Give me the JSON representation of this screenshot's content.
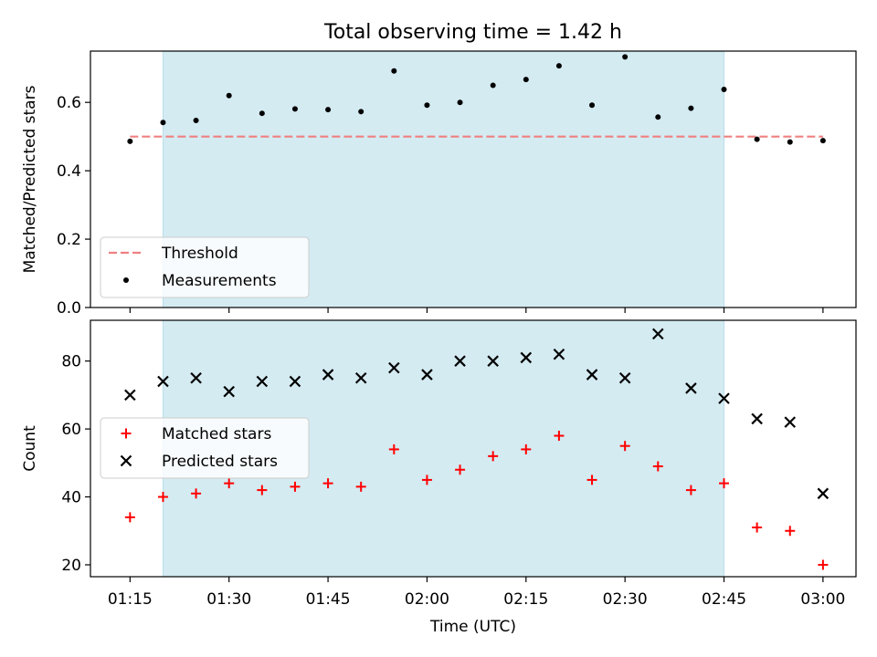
{
  "title": "Total observing time = 1.42 h",
  "colors": {
    "threshold": "#f08080",
    "measurements": "#000000",
    "matched": "#ff0000",
    "predicted": "#000000",
    "shade": "#add8e6"
  },
  "chart_data": [
    {
      "type": "scatter",
      "ylabel": "Matched/Predicted stars",
      "ylim": [
        0,
        0.75
      ],
      "yticks": [
        0.0,
        0.2,
        0.4,
        0.6
      ],
      "ytick_labels": [
        "0.0",
        "0.2",
        "0.4",
        "0.6"
      ],
      "xlim": [
        "01:09",
        "03:05"
      ],
      "shaded_span": [
        "01:20",
        "02:45"
      ],
      "legend": {
        "placement": "lower-left",
        "entries": [
          "Threshold",
          "Measurements"
        ]
      },
      "threshold": {
        "name": "Threshold",
        "value": 0.5,
        "x_range": [
          "01:15",
          "03:00"
        ]
      },
      "series": [
        {
          "name": "Measurements",
          "marker": "dot",
          "x": [
            "01:15",
            "01:20",
            "01:25",
            "01:30",
            "01:35",
            "01:40",
            "01:45",
            "01:50",
            "01:55",
            "02:00",
            "02:05",
            "02:10",
            "02:15",
            "02:20",
            "02:25",
            "02:30",
            "02:35",
            "02:40",
            "02:45",
            "02:50",
            "02:55",
            "03:00"
          ],
          "y": [
            0.486,
            0.541,
            0.547,
            0.62,
            0.568,
            0.581,
            0.579,
            0.573,
            0.692,
            0.592,
            0.6,
            0.65,
            0.667,
            0.707,
            0.592,
            0.733,
            0.557,
            0.583,
            0.638,
            0.492,
            0.484,
            0.488
          ]
        }
      ]
    },
    {
      "type": "scatter",
      "ylabel": "Count",
      "xlabel": "Time (UTC)",
      "ylim": [
        16.5,
        92
      ],
      "yticks": [
        20,
        40,
        60,
        80
      ],
      "ytick_labels": [
        "20",
        "40",
        "60",
        "80"
      ],
      "xlim": [
        "01:09",
        "03:05"
      ],
      "xticks": [
        "01:15",
        "01:30",
        "01:45",
        "02:00",
        "02:15",
        "02:30",
        "02:45",
        "03:00"
      ],
      "shaded_span": [
        "01:20",
        "02:45"
      ],
      "legend": {
        "placement": "center-left",
        "entries": [
          "Matched stars",
          "Predicted stars"
        ]
      },
      "series": [
        {
          "name": "Matched stars",
          "marker": "plus",
          "x": [
            "01:15",
            "01:20",
            "01:25",
            "01:30",
            "01:35",
            "01:40",
            "01:45",
            "01:50",
            "01:55",
            "02:00",
            "02:05",
            "02:10",
            "02:15",
            "02:20",
            "02:25",
            "02:30",
            "02:35",
            "02:40",
            "02:45",
            "02:50",
            "02:55",
            "03:00"
          ],
          "y": [
            34,
            40,
            41,
            44,
            42,
            43,
            44,
            43,
            54,
            45,
            48,
            52,
            54,
            58,
            45,
            55,
            49,
            42,
            44,
            31,
            30,
            20
          ]
        },
        {
          "name": "Predicted stars",
          "marker": "x",
          "x": [
            "01:15",
            "01:20",
            "01:25",
            "01:30",
            "01:35",
            "01:40",
            "01:45",
            "01:50",
            "01:55",
            "02:00",
            "02:05",
            "02:10",
            "02:15",
            "02:20",
            "02:25",
            "02:30",
            "02:35",
            "02:40",
            "02:45",
            "02:50",
            "02:55",
            "03:00"
          ],
          "y": [
            70,
            74,
            75,
            71,
            74,
            74,
            76,
            75,
            78,
            76,
            80,
            80,
            81,
            82,
            76,
            75,
            88,
            72,
            69,
            63,
            62,
            41
          ]
        }
      ]
    }
  ]
}
